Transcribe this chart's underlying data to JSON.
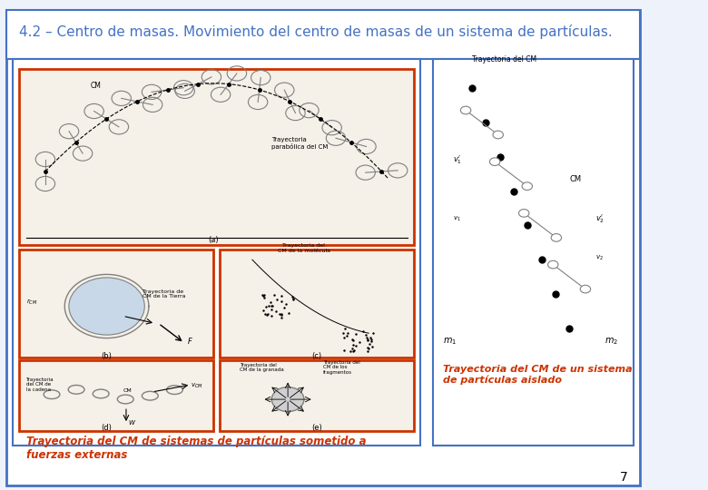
{
  "title": "4.2 – Centro de masas. Movimiento del centro de masas de un sistema de partículas.",
  "title_color": "#4472C4",
  "title_fontsize": 11,
  "outer_border_color": "#4472C4",
  "inner_border_color": "#CC3300",
  "caption_left": "Trayectoria del CM de sistemas de partículas sometido a\nfuerzas externas",
  "caption_right": "Trayectoria del CM de un sistema\nde partículas aislado",
  "caption_color": "#CC3300",
  "caption_fontsize": 8.5,
  "page_number": "7",
  "page_number_fontsize": 10,
  "slide_bg": "#EEF2FA"
}
